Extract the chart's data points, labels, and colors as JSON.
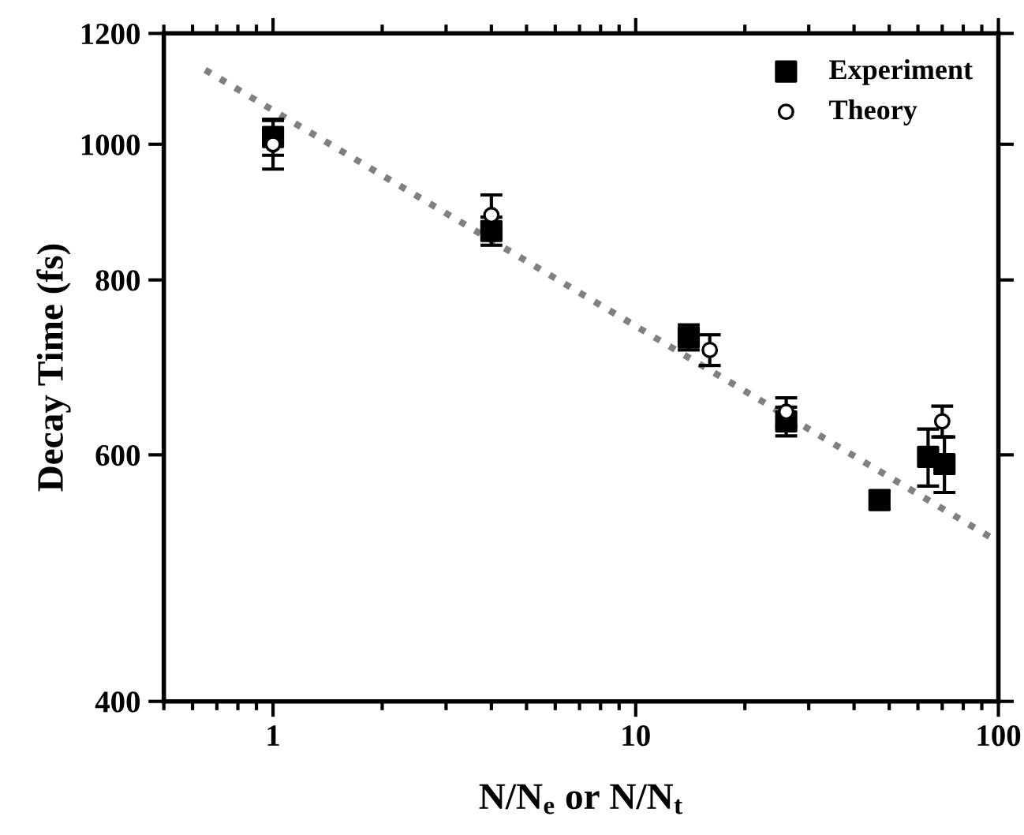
{
  "chart_data": {
    "type": "scatter",
    "xlabel": "N/N$_{e}$ or N/N$_{t}$",
    "ylabel": "Decay Time (fs)",
    "log": "xy",
    "xlim": [
      0.5,
      100
    ],
    "xticks": [
      1,
      10,
      100
    ],
    "ylim": [
      400,
      1200
    ],
    "yticks": [
      400,
      600,
      800,
      1000,
      1200
    ],
    "legend": "top right",
    "grid": false,
    "series": [
      {
        "type": "line",
        "color": "#808080",
        "line_style": "dotted",
        "marker": "none",
        "x": [
          0.65,
          100
        ],
        "values": [
          1130,
          520
        ]
      },
      {
        "name": "Experiment",
        "color": "#000000",
        "marker": "square",
        "x": [
          1,
          4,
          14,
          26,
          47,
          64,
          71
        ],
        "values": [
          1012,
          867,
          728,
          634,
          557,
          598,
          591
        ],
        "errors": [
          30,
          20,
          15,
          15,
          8,
          28,
          27
        ]
      },
      {
        "name": "Theory",
        "color": "#000000",
        "marker": "circle",
        "x": [
          1,
          4,
          16,
          26,
          70
        ],
        "values": [
          1000,
          890,
          713,
          644,
          634
        ],
        "errors": [
          40,
          30,
          18,
          15,
          16
        ]
      }
    ]
  }
}
